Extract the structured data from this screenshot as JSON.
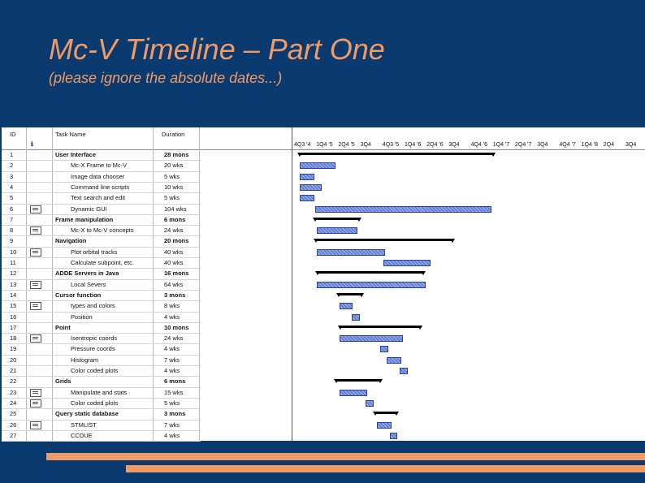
{
  "slide": {
    "title": "Mc-V Timeline – Part One",
    "subtitle": "(please ignore the absolute dates...)"
  },
  "table": {
    "headers": {
      "id": "ID",
      "name": "Task Name",
      "duration": "Duration"
    },
    "info_icon": "info-icon",
    "rows": [
      {
        "id": "1",
        "name": "User Interface",
        "duration": "28 mons",
        "summary": true,
        "indicator": false
      },
      {
        "id": "2",
        "name": "Mc-X Frame to Mc-V",
        "duration": "20 wks",
        "summary": false,
        "indicator": false
      },
      {
        "id": "3",
        "name": "Image data chooser",
        "duration": "5 wks",
        "summary": false,
        "indicator": false
      },
      {
        "id": "4",
        "name": "Command line scripts",
        "duration": "10 wks",
        "summary": false,
        "indicator": false
      },
      {
        "id": "5",
        "name": "Text search and edit",
        "duration": "5 wks",
        "summary": false,
        "indicator": false
      },
      {
        "id": "6",
        "name": "Dynamic GUI",
        "duration": "104 wks",
        "summary": false,
        "indicator": true
      },
      {
        "id": "7",
        "name": "Frame manipulation",
        "duration": "6 mons",
        "summary": true,
        "indicator": false
      },
      {
        "id": "8",
        "name": "Mc-X to Mc-V concepts",
        "duration": "24 wks",
        "summary": false,
        "indicator": true
      },
      {
        "id": "9",
        "name": "Navigation",
        "duration": "20 mons",
        "summary": true,
        "indicator": false
      },
      {
        "id": "10",
        "name": "Plot orbital tracks",
        "duration": "40 wks",
        "summary": false,
        "indicator": true
      },
      {
        "id": "11",
        "name": "Calculate subpoint, etc.",
        "duration": "40 wks",
        "summary": false,
        "indicator": false
      },
      {
        "id": "12",
        "name": "ADDE Servers in Java",
        "duration": "16 mons",
        "summary": true,
        "indicator": false
      },
      {
        "id": "13",
        "name": "Local Severs",
        "duration": "64 wks",
        "summary": false,
        "indicator": true
      },
      {
        "id": "14",
        "name": "Cursor function",
        "duration": "3 mons",
        "summary": true,
        "indicator": false
      },
      {
        "id": "15",
        "name": "types and colors",
        "duration": "8 wks",
        "summary": false,
        "indicator": true
      },
      {
        "id": "16",
        "name": "Position",
        "duration": "4 wks",
        "summary": false,
        "indicator": false
      },
      {
        "id": "17",
        "name": "Point",
        "duration": "10 mons",
        "summary": true,
        "indicator": false
      },
      {
        "id": "18",
        "name": "Isentropic coords",
        "duration": "24 wks",
        "summary": false,
        "indicator": true
      },
      {
        "id": "19",
        "name": "Pressure coords",
        "duration": "4 wks",
        "summary": false,
        "indicator": false
      },
      {
        "id": "20",
        "name": "Histogram",
        "duration": "7 wks",
        "summary": false,
        "indicator": false
      },
      {
        "id": "21",
        "name": "Color coded plots",
        "duration": "4 wks",
        "summary": false,
        "indicator": false
      },
      {
        "id": "22",
        "name": "Grids",
        "duration": "6 mons",
        "summary": true,
        "indicator": false
      },
      {
        "id": "23",
        "name": "Manipulate and stats",
        "duration": "15 wks",
        "summary": false,
        "indicator": true
      },
      {
        "id": "24",
        "name": "Color coded plots",
        "duration": "5 wks",
        "summary": false,
        "indicator": true
      },
      {
        "id": "25",
        "name": "Query static database",
        "duration": "3 mons",
        "summary": true,
        "indicator": false
      },
      {
        "id": "26",
        "name": "STMLIST",
        "duration": "7 wks",
        "summary": false,
        "indicator": true
      },
      {
        "id": "27",
        "name": "CCDUE",
        "duration": "4 wks",
        "summary": false,
        "indicator": false
      }
    ]
  },
  "timeline": {
    "labels": [
      "4Q3 '4",
      "1Q4 '5",
      "2Q4 '5",
      "3Q4",
      "4Q3 '5",
      "1Q4 '6",
      "2Q4 '6",
      "3Q4",
      "4Q4 '6",
      "1Q4 '7",
      "2Q4 '7",
      "3Q4",
      "4Q4 '7",
      "1Q4 '8",
      "2Q4",
      "3Q4"
    ]
  }
}
